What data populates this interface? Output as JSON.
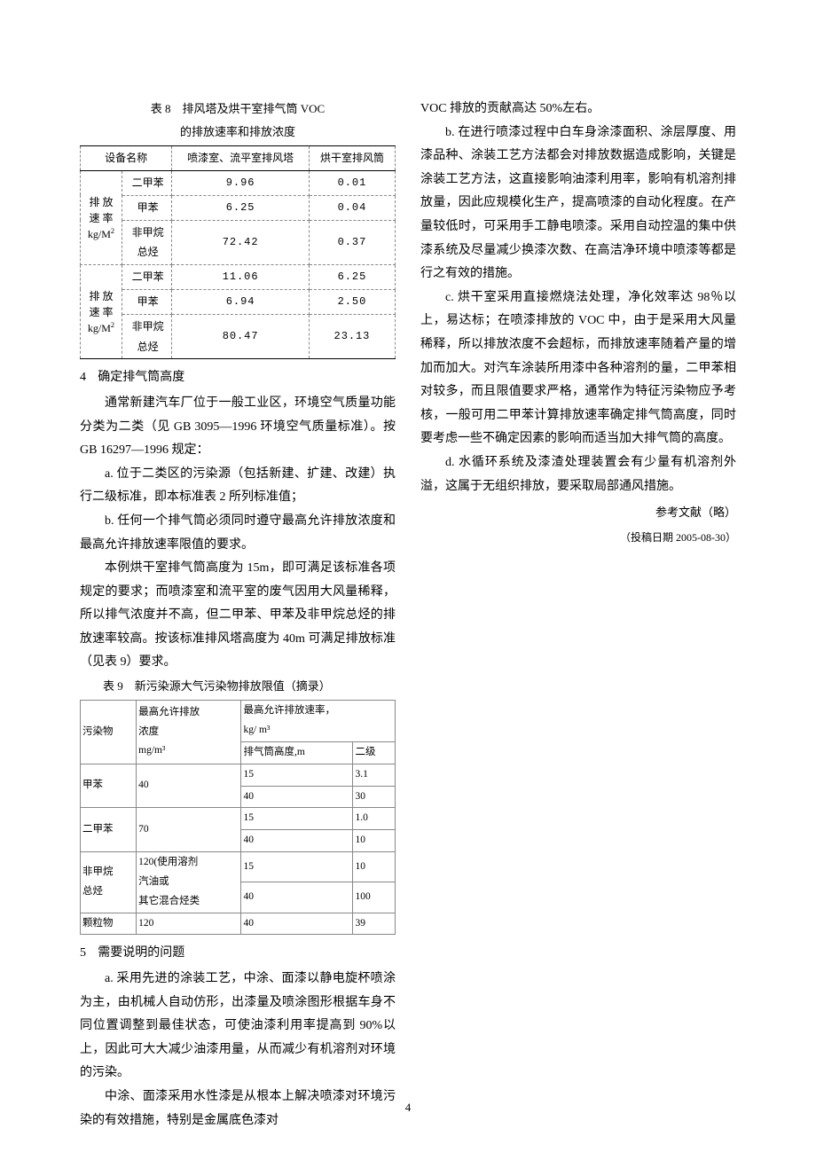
{
  "page_number": "4",
  "left": {
    "table8": {
      "caption_l1": "表 8　排风塔及烘干室排气筒 VOC",
      "caption_l2": "的排放速率和排放浓度",
      "header_cols": [
        "设备名称",
        "喷漆室、流平室排风塔",
        "烘干室排风筒"
      ],
      "row_group1_label": "排 放\n速 率\nkg/M²",
      "row_group2_label": "排 放\n速 率\nkg/M²",
      "sub_labels": [
        "二甲苯",
        "甲苯",
        "非甲烷\n总烃"
      ],
      "g1_vals_a": [
        "9.96",
        "6.25",
        "72.42"
      ],
      "g1_vals_b": [
        "0.01",
        "0.04",
        "0.37"
      ],
      "g2_vals_a": [
        "11.06",
        "6.94",
        "80.47"
      ],
      "g2_vals_b": [
        "6.25",
        "2.50",
        "23.13"
      ]
    },
    "sec4_head_num": "4",
    "sec4_head_txt": "确定排气筒高度",
    "p1": "通常新建汽车厂位于一般工业区，环境空气质量功能分类为二类（见 GB 3095—1996 环境空气质量标准）。按 GB 16297—1996 规定：",
    "p2": "a. 位于二类区的污染源（包括新建、扩建、改建）执行二级标准，即本标准表 2 所列标准值；",
    "p3": "b. 任何一个排气筒必须同时遵守最高允许排放浓度和最高允许排放速率限值的要求。",
    "p4": "本例烘干室排气筒高度为 15m，即可满足该标准各项规定的要求；而喷漆室和流平室的废气因用大风量稀释，所以排气浓度并不高，但二甲苯、甲苯及非甲烷总烃的排放速率较高。按该标准排风塔高度为 40m 可满足排放标准（见表 9）要求。",
    "table9": {
      "caption": "表 9　新污染源大气污染物排放限值（摘录）",
      "hdr1": "污染物",
      "hdr2_l1": "最高允许排放",
      "hdr2_l2": "浓度",
      "hdr2_l3": "mg/m³",
      "hdr3_l1": "最高允许排放速率，",
      "hdr3_l2": "kg/ m³",
      "hdr4": "排气筒高度,m",
      "hdr5": "二级",
      "rows": [
        {
          "pol": "甲苯",
          "conc": "40",
          "h1": "15",
          "v1": "3.1",
          "h2": "40",
          "v2": "30"
        },
        {
          "pol": "二甲苯",
          "conc": "70",
          "h1": "15",
          "v1": "1.0",
          "h2": "40",
          "v2": "10"
        },
        {
          "pol": "非甲烷\n总烃",
          "conc": "120(使用溶剂\n汽油或\n其它混合烃类",
          "h1": "15",
          "v1": "10",
          "h2": "40",
          "v2": "100"
        },
        {
          "pol": "颗粒物",
          "conc": "120",
          "h1": "40",
          "v1": "39"
        }
      ]
    },
    "sec5_head_num": "5",
    "sec5_head_txt": "需要说明的问题",
    "p5": "a. 采用先进的涂装工艺，中涂、面漆以静电旋杯喷涂为主，由机械人自动仿形，出漆量及喷涂图形根据车身不同位置调整到最佳状态，可使油漆利用率提高到 90%以上，因此可大大减少油漆用量，从而减少有机溶剂对环境的污染。",
    "p6": "中涂、面漆采用水性漆是从根本上解决喷漆对环境污染的有效措施，特别是金属底色漆对"
  },
  "right": {
    "p0": "VOC 排放的贡献高达 50%左右。",
    "p1": "b. 在进行喷漆过程中白车身涂漆面积、涂层厚度、用漆品种、涂装工艺方法都会对排放数据造成影响，关键是涂装工艺方法，这直接影响油漆利用率，影响有机溶剂排放量，因此应规模化生产，提高喷漆的自动化程度。在产量较低时，可采用手工静电喷漆。采用自动控温的集中供漆系统及尽量减少换漆次数、在高洁净环境中喷漆等都是行之有效的措施。",
    "p2": "c. 烘干室采用直接燃烧法处理，净化效率达 98％以上，易达标；在喷漆排放的 VOC 中，由于是采用大风量稀释，所以排放浓度不会超标，而排放速率随着产量的增加而加大。对汽车涂装所用漆中各种溶剂的量，二甲苯相对较多，而且限值要求严格，通常作为特征污染物应予考核，一般可用二甲苯计算排放速率确定排气筒高度，同时要考虑一些不确定因素的影响而适当加大排气筒的高度。",
    "p3": "d. 水循环系统及漆渣处理装置会有少量有机溶剂外溢，这属于无组织排放，要采取局部通风措施。",
    "ref": "参考文献（略）",
    "date": "（投稿日期 2005-08-30）"
  }
}
